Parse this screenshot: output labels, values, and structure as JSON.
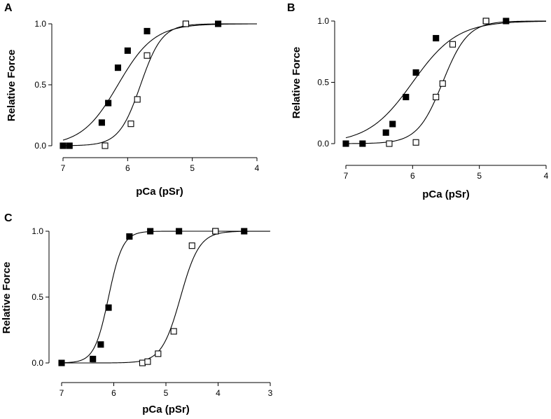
{
  "chart_data": [
    {
      "panel": "A",
      "type": "scatter",
      "xlabel": "pCa (pSr)",
      "ylabel": "Relative Force",
      "xlim": [
        7,
        4
      ],
      "ylim": [
        0,
        1
      ],
      "xticks": [
        "7",
        "6",
        "5",
        "4"
      ],
      "yticks": [
        "0.0",
        "0.5",
        "1.0"
      ],
      "series": [
        {
          "name": "filled squares",
          "marker_fill": "#000000",
          "fit": {
            "pHalf": 6.15,
            "n": 1.55
          },
          "points": [
            {
              "x": 7.0,
              "y": 0.0
            },
            {
              "x": 6.9,
              "y": 0.0
            },
            {
              "x": 6.4,
              "y": 0.19
            },
            {
              "x": 6.3,
              "y": 0.35
            },
            {
              "x": 6.15,
              "y": 0.64
            },
            {
              "x": 6.0,
              "y": 0.78
            },
            {
              "x": 5.7,
              "y": 0.94
            },
            {
              "x": 5.1,
              "y": 1.0
            },
            {
              "x": 4.6,
              "y": 1.0
            }
          ]
        },
        {
          "name": "open squares",
          "marker_fill": "#ffffff",
          "fit": {
            "pHalf": 5.8,
            "n": 2.6
          },
          "points": [
            {
              "x": 6.35,
              "y": 0.0
            },
            {
              "x": 5.95,
              "y": 0.18
            },
            {
              "x": 5.85,
              "y": 0.38
            },
            {
              "x": 5.7,
              "y": 0.74
            },
            {
              "x": 5.1,
              "y": 1.0
            }
          ]
        }
      ]
    },
    {
      "panel": "B",
      "type": "scatter",
      "xlabel": "pCa (pSr)",
      "ylabel": "Relative Force",
      "xlim": [
        7,
        4
      ],
      "ylim": [
        0,
        1
      ],
      "xticks": [
        "7",
        "6",
        "5",
        "4"
      ],
      "yticks": [
        "0.0",
        "0.5",
        "1.0"
      ],
      "series": [
        {
          "name": "filled squares",
          "marker_fill": "#000000",
          "fit": {
            "pHalf": 6.0,
            "n": 1.3
          },
          "points": [
            {
              "x": 7.0,
              "y": 0.0
            },
            {
              "x": 6.75,
              "y": 0.0
            },
            {
              "x": 6.4,
              "y": 0.09
            },
            {
              "x": 6.3,
              "y": 0.16
            },
            {
              "x": 6.1,
              "y": 0.38
            },
            {
              "x": 5.95,
              "y": 0.58
            },
            {
              "x": 5.65,
              "y": 0.86
            },
            {
              "x": 4.9,
              "y": 1.0
            },
            {
              "x": 4.6,
              "y": 1.0
            }
          ]
        },
        {
          "name": "open squares",
          "marker_fill": "#ffffff",
          "fit": {
            "pHalf": 5.55,
            "n": 2.3
          },
          "points": [
            {
              "x": 6.35,
              "y": 0.0
            },
            {
              "x": 5.95,
              "y": 0.01
            },
            {
              "x": 5.65,
              "y": 0.38
            },
            {
              "x": 5.55,
              "y": 0.49
            },
            {
              "x": 5.4,
              "y": 0.81
            },
            {
              "x": 4.9,
              "y": 1.0
            }
          ]
        }
      ]
    },
    {
      "panel": "C",
      "type": "scatter",
      "xlabel": "pCa (pSr)",
      "ylabel": "Relative Force",
      "xlim": [
        7,
        3
      ],
      "ylim": [
        0,
        1
      ],
      "xticks": [
        "7",
        "6",
        "5",
        "4",
        "3"
      ],
      "yticks": [
        "0.0",
        "0.5",
        "1.0"
      ],
      "series": [
        {
          "name": "filled squares",
          "marker_fill": "#000000",
          "fit": {
            "pHalf": 6.1,
            "n": 3.2
          },
          "points": [
            {
              "x": 7.0,
              "y": 0.0
            },
            {
              "x": 6.4,
              "y": 0.03
            },
            {
              "x": 6.25,
              "y": 0.14
            },
            {
              "x": 6.1,
              "y": 0.42
            },
            {
              "x": 5.7,
              "y": 0.96
            },
            {
              "x": 5.3,
              "y": 1.0
            },
            {
              "x": 4.75,
              "y": 1.0
            },
            {
              "x": 4.05,
              "y": 1.0
            },
            {
              "x": 3.5,
              "y": 1.0
            }
          ]
        },
        {
          "name": "open squares",
          "marker_fill": "#ffffff",
          "fit": {
            "pHalf": 4.72,
            "n": 2.4
          },
          "points": [
            {
              "x": 5.45,
              "y": 0.0
            },
            {
              "x": 5.35,
              "y": 0.01
            },
            {
              "x": 5.15,
              "y": 0.07
            },
            {
              "x": 4.85,
              "y": 0.24
            },
            {
              "x": 4.5,
              "y": 0.89
            },
            {
              "x": 4.05,
              "y": 1.0
            }
          ]
        }
      ]
    }
  ]
}
